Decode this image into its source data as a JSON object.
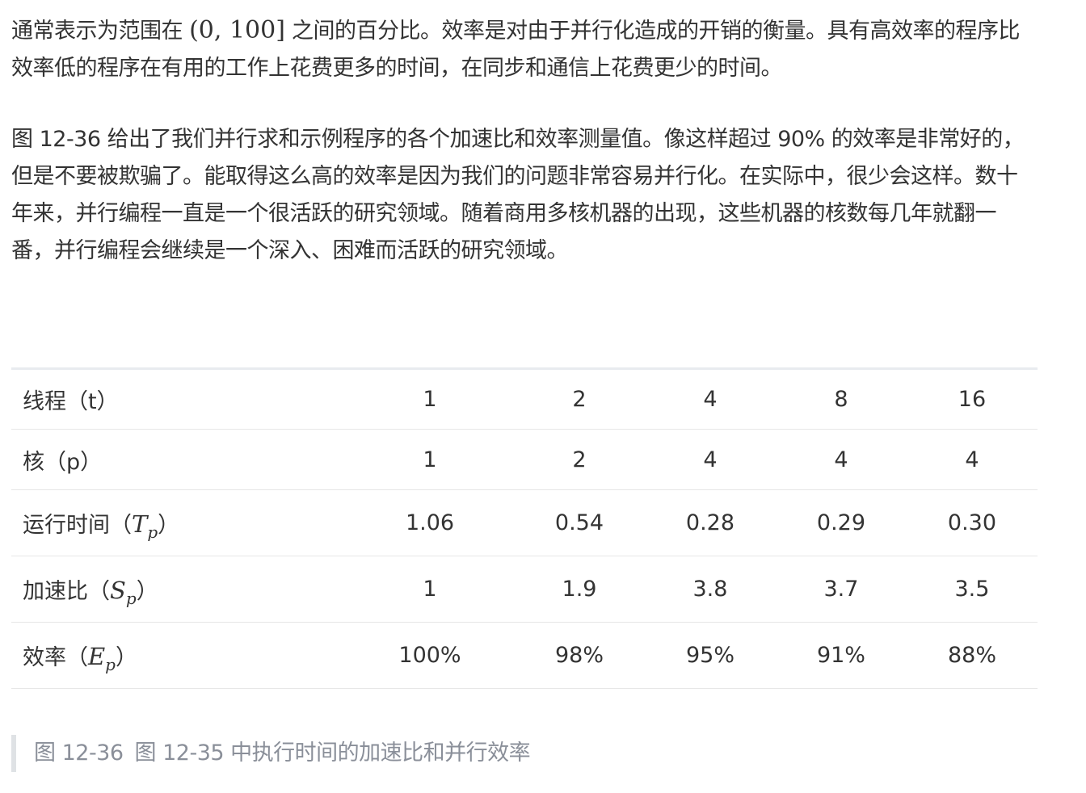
{
  "paragraph1": {
    "before_math": "通常表示为范围在 ",
    "math": "(0, 100]",
    "after_math": " 之间的百分比。效率是对由于并行化造成的开销的衡量。具有高效率的程序比效率低的程序在有用的工作上花费更多的时间，在同步和通信上花费更少的时间。"
  },
  "paragraph2": "图 12-36 给出了我们并行求和示例程序的各个加速比和效率测量值。像这样超过 90% 的效率是非常好的，但是不要被欺骗了。能取得这么高的效率是因为我们的问题非常容易并行化。在实际中，很少会这样。数十年来，并行编程一直是一个很活跃的研究领域。随着商用多核机器的出现，这些机器的核数每几年就翻一番，并行编程会继续是一个深入、困难而活跃的研究领域。",
  "table": {
    "threads": {
      "label": "线程（t）",
      "values": [
        "1",
        "2",
        "4",
        "8",
        "16"
      ]
    },
    "cores": {
      "label": "核（p）",
      "values": [
        "1",
        "2",
        "4",
        "4",
        "4"
      ]
    },
    "runtime": {
      "label_prefix": "运行时间（",
      "var": "T",
      "sub": "p",
      "label_suffix": "）",
      "values": [
        "1.06",
        "0.54",
        "0.28",
        "0.29",
        "0.30"
      ]
    },
    "speedup": {
      "label_prefix": "加速比（",
      "var": "S",
      "sub": "p",
      "label_suffix": "）",
      "values": [
        "1",
        "1.9",
        "3.8",
        "3.7",
        "3.5"
      ]
    },
    "efficiency": {
      "label_prefix": "效率（",
      "var": "E",
      "sub": "p",
      "label_suffix": "）",
      "values": [
        "100%",
        "98%",
        "95%",
        "91%",
        "88%"
      ]
    }
  },
  "caption": {
    "number": "图 12-36",
    "text": "图 12-35 中执行时间的加速比和并行效率"
  }
}
